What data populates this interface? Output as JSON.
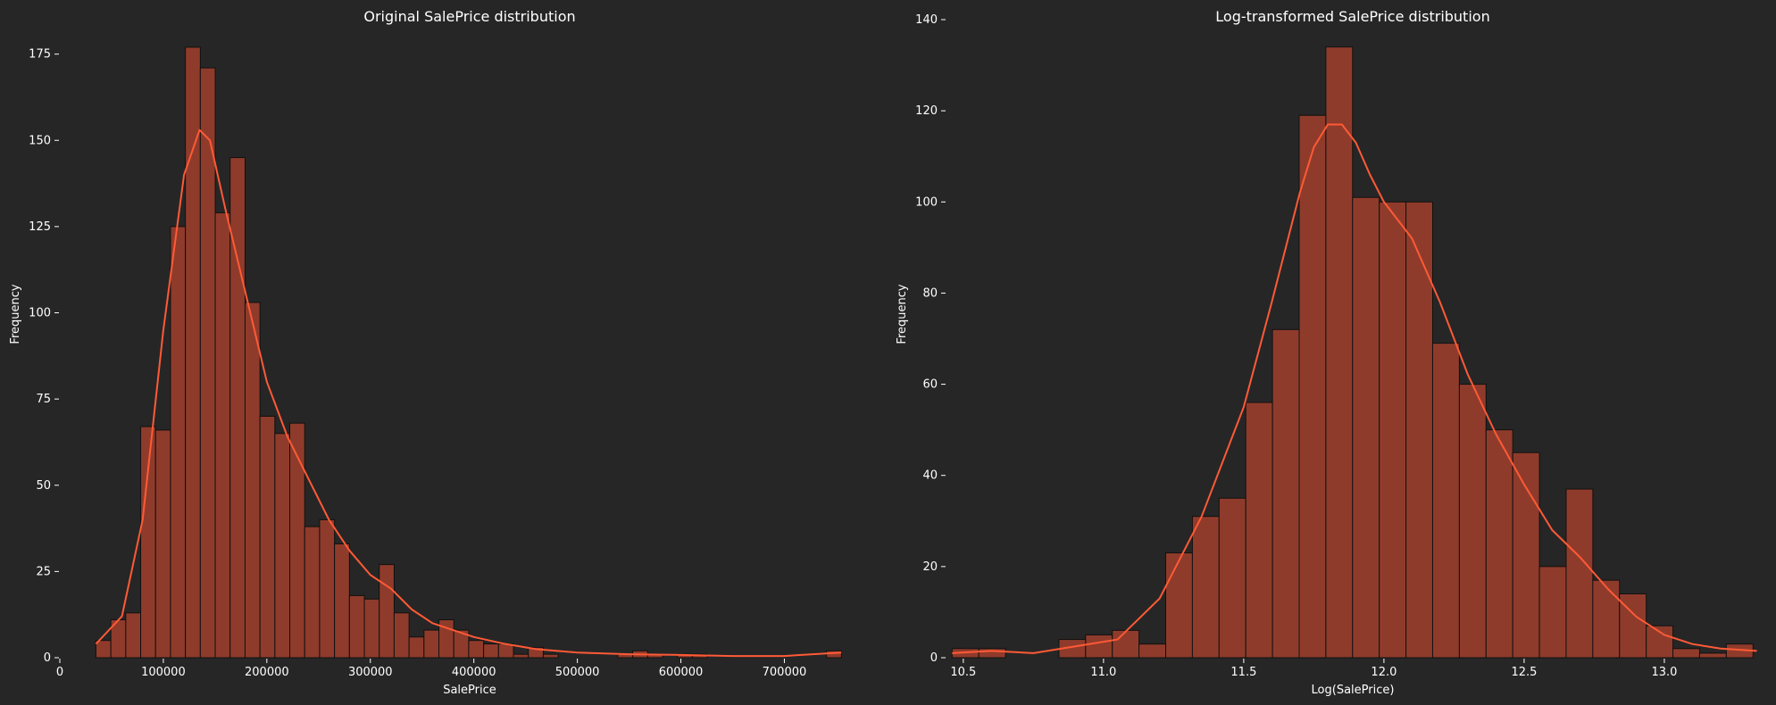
{
  "chart_data": [
    {
      "type": "bar",
      "title": "Original SalePrice distribution",
      "xlabel": "SalePrice",
      "ylabel": "Frequency",
      "xlim": [
        0,
        760000
      ],
      "ylim": [
        0,
        185
      ],
      "xticks": [
        0,
        100000,
        200000,
        300000,
        400000,
        500000,
        600000,
        700000
      ],
      "yticks": [
        0,
        25,
        50,
        75,
        100,
        125,
        150,
        175
      ],
      "grid": false,
      "bar_color": "#8f3b2b",
      "edge_color": "#111111",
      "kde_color": "#ff5a36",
      "bin_start": 34900,
      "bin_width": 14405,
      "values": [
        5,
        11,
        13,
        67,
        66,
        125,
        177,
        171,
        129,
        145,
        103,
        70,
        65,
        68,
        38,
        40,
        33,
        18,
        17,
        27,
        13,
        6,
        8,
        11,
        8,
        5,
        4,
        4,
        1,
        3,
        1,
        0,
        0,
        0,
        0,
        1,
        2,
        1,
        0,
        1,
        1,
        0,
        0,
        0,
        0,
        0,
        0,
        0,
        0,
        2
      ],
      "kde": {
        "x": [
          34900,
          60000,
          80000,
          100000,
          120000,
          135000,
          145000,
          160000,
          180000,
          200000,
          220000,
          240000,
          260000,
          280000,
          300000,
          320000,
          340000,
          360000,
          380000,
          400000,
          430000,
          460000,
          500000,
          550000,
          600000,
          650000,
          700000,
          755000
        ],
        "y": [
          4,
          12,
          40,
          95,
          140,
          153,
          150,
          130,
          105,
          80,
          64,
          52,
          40,
          31,
          24,
          20,
          14,
          10,
          8,
          6,
          4,
          2.5,
          1.5,
          1,
          0.8,
          0.5,
          0.5,
          1.5
        ]
      }
    },
    {
      "type": "bar",
      "title": "Log-transformed SalePrice distribution",
      "xlabel": "Log(SalePrice)",
      "ylabel": "Frequency",
      "xlim": [
        10.44,
        13.36
      ],
      "ylim": [
        0,
        140
      ],
      "xticks": [
        10.5,
        11.0,
        11.5,
        12.0,
        12.5,
        13.0
      ],
      "xtick_labels": [
        "10.5",
        "11.0",
        "11.5",
        "12.0",
        "12.5",
        "13.0"
      ],
      "yticks": [
        0,
        20,
        40,
        60,
        80,
        100,
        120,
        140
      ],
      "grid": false,
      "bar_color": "#8f3b2b",
      "edge_color": "#111111",
      "kde_color": "#ff5a36",
      "bin_start": 10.4602,
      "bin_width": 0.0952,
      "values": [
        2,
        2,
        0,
        0,
        4,
        5,
        6,
        3,
        23,
        31,
        35,
        56,
        72,
        119,
        134,
        101,
        100,
        100,
        69,
        60,
        50,
        45,
        20,
        37,
        17,
        14,
        7,
        2,
        1,
        3
      ],
      "kde": {
        "x": [
          10.46,
          10.6,
          10.75,
          10.9,
          11.05,
          11.2,
          11.35,
          11.5,
          11.6,
          11.7,
          11.75,
          11.8,
          11.85,
          11.9,
          11.95,
          12.0,
          12.1,
          12.2,
          12.3,
          12.4,
          12.5,
          12.6,
          12.7,
          12.8,
          12.9,
          13.0,
          13.1,
          13.2,
          13.33
        ],
        "y": [
          1,
          1.5,
          1,
          2.5,
          4,
          13,
          31,
          55,
          78,
          102,
          112,
          117,
          117,
          113,
          106,
          100,
          92,
          78,
          62,
          49,
          38,
          28,
          22,
          15,
          9,
          5,
          3,
          2,
          1.5
        ]
      }
    }
  ]
}
